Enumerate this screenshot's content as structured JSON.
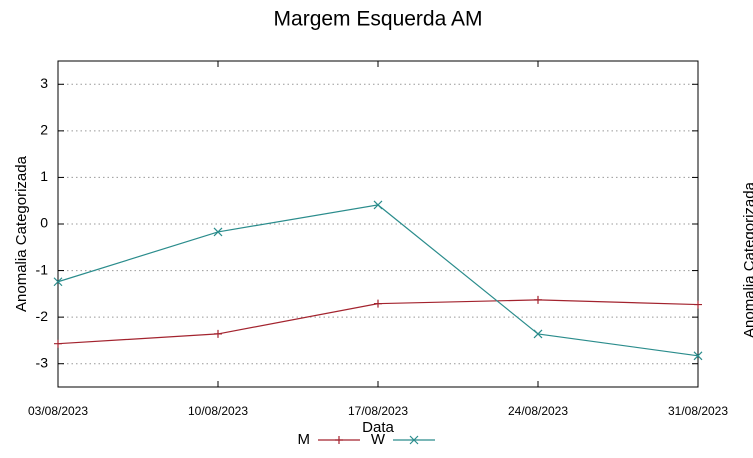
{
  "chart_data": {
    "type": "line",
    "title": "Margem Esquerda AM",
    "xlabel": "Data",
    "ylabel": "Anomalia Categorizada",
    "categories": [
      "03/08/2023",
      "10/08/2023",
      "17/08/2023",
      "24/08/2023",
      "31/08/2023"
    ],
    "series": [
      {
        "name": "M",
        "color": "#a3232e",
        "marker": "+",
        "values": [
          -2.57,
          -2.36,
          -1.71,
          -1.63,
          -1.73
        ]
      },
      {
        "name": "W",
        "color": "#2a8c8c",
        "marker": "x",
        "values": [
          -1.24,
          -0.17,
          0.41,
          -2.36,
          -2.83
        ]
      }
    ],
    "ylim": [
      -3.5,
      3.5
    ],
    "yticks": [
      -3,
      -2,
      -1,
      0,
      1,
      2,
      3
    ],
    "grid": true,
    "legend": "bottom",
    "neighbor_ylabel": "Anomalia Categorizada"
  }
}
